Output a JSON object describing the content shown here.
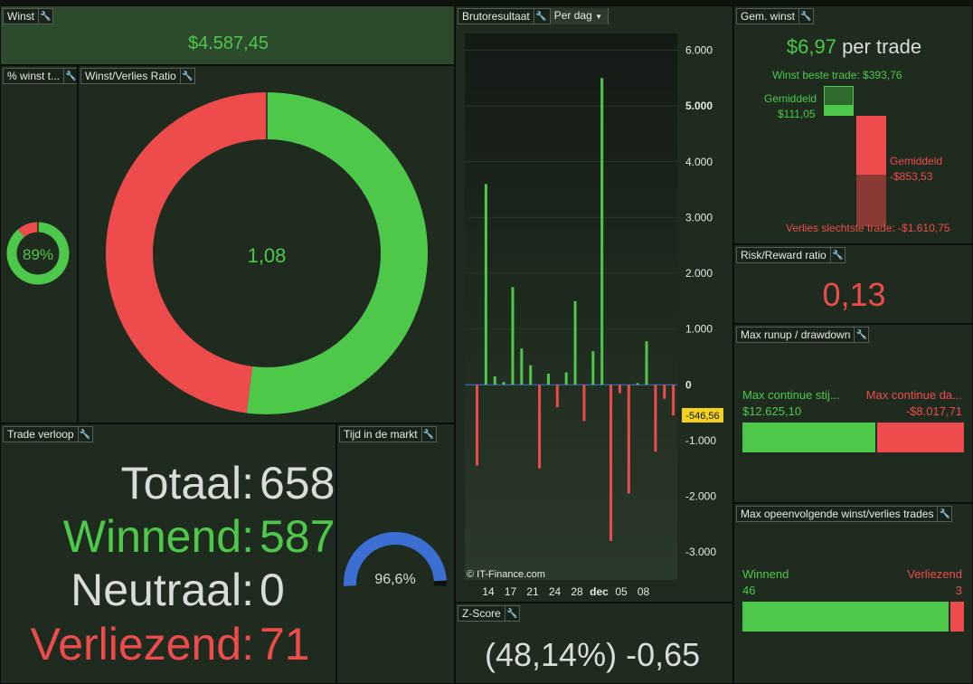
{
  "winst": {
    "title": "Winst",
    "value": "$4.587,45"
  },
  "pct_winst": {
    "title": "% winst t...",
    "value": "89%",
    "fraction": 0.89
  },
  "ratio": {
    "title": "Winst/Verlies Ratio",
    "value": "1,08",
    "green_fraction": 0.52
  },
  "bruto": {
    "title": "Brutoresultaat",
    "period": "Per dag",
    "watermark": "© IT-Finance.com",
    "current_label": "-546,56"
  },
  "gem_winst": {
    "title": "Gem. winst",
    "value": "$6,97",
    "suffix": "per trade",
    "best": "Winst beste trade: $393,76",
    "avg_win_label": "Gemiddeld",
    "avg_win_value": "$111,05",
    "avg_loss_label": "Gemiddeld",
    "avg_loss_value": "-$853,53",
    "worst": "Verlies slechtste trade: -$1.610,75"
  },
  "risk": {
    "title": "Risk/Reward ratio",
    "value": "0,13"
  },
  "runup": {
    "title": "Max runup / drawdown",
    "left_label": "Max continue stij...",
    "left_value": "$12.625,10",
    "right_label": "Max continue da...",
    "right_value": "-$8.017,71",
    "green_fraction": 0.61
  },
  "trade_verloop": {
    "title": "Trade verloop",
    "rows": [
      {
        "label": "Totaal:",
        "value": "658"
      },
      {
        "label": "Winnend:",
        "value": "587"
      },
      {
        "label": "Neutraal:",
        "value": "0"
      },
      {
        "label": "Verliezend:",
        "value": "71"
      }
    ]
  },
  "tijd": {
    "title": "Tijd in de markt",
    "value": "96,6%",
    "fraction": 0.966
  },
  "zscore": {
    "title": "Z-Score",
    "value": "(48,14%) -0,65"
  },
  "max_opeen": {
    "title": "Max opeenvolgende winst/verlies trades",
    "win_label": "Winnend",
    "win_value": "46",
    "loss_label": "Verliezend",
    "loss_value": "3"
  },
  "colors": {
    "green": "#4ec84b",
    "red": "#ee4c4c",
    "blue": "#3b6fd4",
    "panel": "#1f2b1f"
  },
  "chart_data": {
    "type": "bar",
    "x_tick_labels": [
      "14",
      "17",
      "21",
      "24",
      "28",
      "dec",
      "05",
      "08"
    ],
    "y_ticks": [
      "6.000",
      "5.000",
      "4.000",
      "3.000",
      "2.000",
      "1.000",
      "0",
      "-1.000",
      "-2.000",
      "-3.000"
    ],
    "ylim": [
      -3500,
      6300
    ],
    "values": [
      -1450,
      3600,
      150,
      50,
      1750,
      650,
      350,
      -1500,
      200,
      -400,
      220,
      1500,
      -650,
      600,
      5500,
      -2800,
      -150,
      -1950,
      30,
      780,
      -1200,
      -250,
      -550
    ],
    "current_value": -546.56
  }
}
